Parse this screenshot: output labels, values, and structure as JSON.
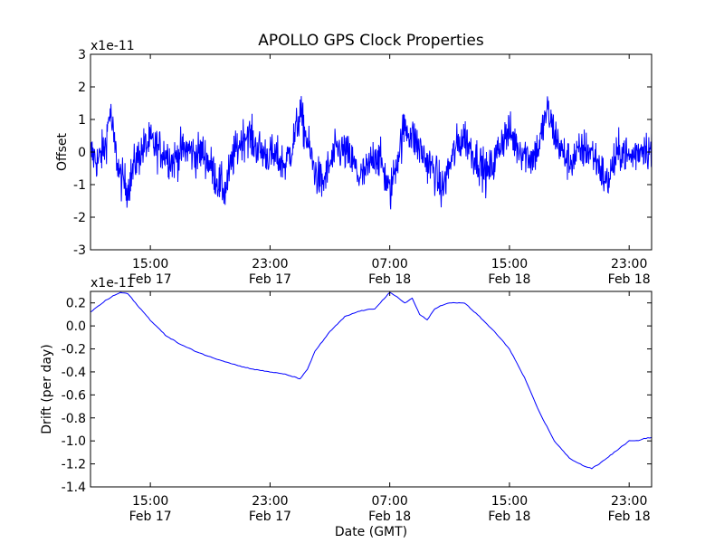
{
  "chart_data": [
    {
      "type": "line",
      "title": "APOLLO GPS Clock Properties",
      "ylabel": "Offset",
      "xlabel": "",
      "multiplier_label": "x1e-11",
      "x_unit": "hours from Feb 17 11:00 GMT",
      "xlim": [
        0,
        37.5
      ],
      "ylim": [
        -3,
        3
      ],
      "yticks": [
        -3,
        -2,
        -1,
        0,
        1,
        2,
        3
      ],
      "ytick_labels": [
        "-3",
        "-2",
        "-1",
        "0",
        "1",
        "2",
        "3"
      ],
      "xticks": [
        {
          "x": 4,
          "time": "15:00",
          "date": "Feb 17"
        },
        {
          "x": 12,
          "time": "23:00",
          "date": "Feb 17"
        },
        {
          "x": 20,
          "time": "07:00",
          "date": "Feb 18"
        },
        {
          "x": 28,
          "time": "15:00",
          "date": "Feb 18"
        },
        {
          "x": 36,
          "time": "23:00",
          "date": "Feb 18"
        }
      ],
      "grid": false,
      "series": [
        {
          "color": "#0000ff",
          "noisy": true,
          "x": [
            0,
            0.5,
            1,
            1.3,
            1.6,
            2,
            2.5,
            3,
            3.5,
            4,
            4.5,
            5,
            5.5,
            6,
            6.5,
            7,
            7.5,
            8,
            8.5,
            9,
            9.5,
            10,
            10.5,
            11,
            11.5,
            12,
            12.5,
            13,
            13.5,
            14,
            14.5,
            15,
            15.5,
            16,
            16.5,
            17,
            17.5,
            18,
            18.5,
            19,
            19.5,
            20,
            20.5,
            21,
            21.5,
            22,
            22.5,
            23,
            23.5,
            24,
            24.5,
            25,
            25.5,
            26,
            26.5,
            27,
            27.5,
            28,
            28.5,
            29,
            29.5,
            30,
            30.5,
            31,
            31.5,
            32,
            32.5,
            33,
            33.5,
            34,
            34.5,
            35,
            35.5,
            36,
            36.5,
            37,
            37.5
          ],
          "values": [
            0.0,
            -0.3,
            0.2,
            1.3,
            0.2,
            -0.8,
            -1.1,
            -0.3,
            0.1,
            0.3,
            0.1,
            0.0,
            -0.3,
            0.0,
            0.1,
            -0.1,
            0.0,
            -0.4,
            -0.9,
            -1.2,
            -0.2,
            0.3,
            0.6,
            0.2,
            0.0,
            -0.1,
            -0.2,
            -0.4,
            0.2,
            1.2,
            0.3,
            -0.6,
            -1.0,
            -0.4,
            0.1,
            0.0,
            -0.3,
            -0.8,
            -0.6,
            0.0,
            -0.4,
            -1.3,
            -0.2,
            0.8,
            0.5,
            0.1,
            -0.3,
            -0.6,
            -1.2,
            -0.4,
            0.2,
            0.5,
            0.0,
            -0.3,
            -0.7,
            -0.3,
            0.4,
            0.6,
            0.2,
            0.0,
            -0.2,
            0.2,
            1.3,
            0.6,
            0.0,
            -0.3,
            -0.1,
            0.1,
            0.0,
            -0.4,
            -1.0,
            -0.3,
            0.1,
            -0.2,
            0.0,
            0.2,
            0.0
          ]
        }
      ]
    },
    {
      "type": "line",
      "title": "",
      "ylabel": "Drift (per day)",
      "xlabel": "Date (GMT)",
      "multiplier_label": "x1e-11",
      "x_unit": "hours from Feb 17 11:00 GMT",
      "xlim": [
        0,
        37.5
      ],
      "ylim": [
        -1.4,
        0.3
      ],
      "yticks": [
        -1.4,
        -1.2,
        -1.0,
        -0.8,
        -0.6,
        -0.4,
        -0.2,
        0.0,
        0.2
      ],
      "ytick_labels": [
        "-1.4",
        "-1.2",
        "-1.0",
        "-0.8",
        "-0.6",
        "-0.4",
        "-0.2",
        "0.0",
        "0.2"
      ],
      "xticks": [
        {
          "x": 4,
          "time": "15:00",
          "date": "Feb 17"
        },
        {
          "x": 12,
          "time": "23:00",
          "date": "Feb 17"
        },
        {
          "x": 20,
          "time": "07:00",
          "date": "Feb 18"
        },
        {
          "x": 28,
          "time": "15:00",
          "date": "Feb 18"
        },
        {
          "x": 36,
          "time": "23:00",
          "date": "Feb 18"
        }
      ],
      "grid": false,
      "series": [
        {
          "color": "#0000ff",
          "noisy": false,
          "x": [
            0,
            0.5,
            1,
            1.5,
            2,
            2.5,
            3,
            4,
            5,
            6,
            7,
            8,
            9,
            10,
            11,
            12,
            13,
            13.5,
            14,
            14.5,
            15,
            16,
            17,
            18,
            19,
            19.5,
            20,
            20.5,
            21,
            21.5,
            22,
            22.5,
            23,
            23.5,
            24,
            25,
            26,
            27,
            28,
            29,
            30,
            31,
            32,
            33,
            33.5,
            34,
            34.5,
            35,
            35.5,
            36,
            36.5,
            37,
            37.5
          ],
          "values": [
            0.12,
            0.17,
            0.22,
            0.26,
            0.29,
            0.28,
            0.2,
            0.05,
            -0.08,
            -0.16,
            -0.22,
            -0.27,
            -0.31,
            -0.35,
            -0.38,
            -0.4,
            -0.42,
            -0.44,
            -0.46,
            -0.38,
            -0.22,
            -0.05,
            0.08,
            0.13,
            0.15,
            0.22,
            0.29,
            0.25,
            0.2,
            0.24,
            0.1,
            0.05,
            0.15,
            0.18,
            0.2,
            0.2,
            0.08,
            -0.05,
            -0.2,
            -0.45,
            -0.75,
            -1.0,
            -1.15,
            -1.22,
            -1.24,
            -1.2,
            -1.15,
            -1.1,
            -1.05,
            -1.0,
            -1.0,
            -0.98,
            -0.97
          ]
        }
      ]
    }
  ]
}
